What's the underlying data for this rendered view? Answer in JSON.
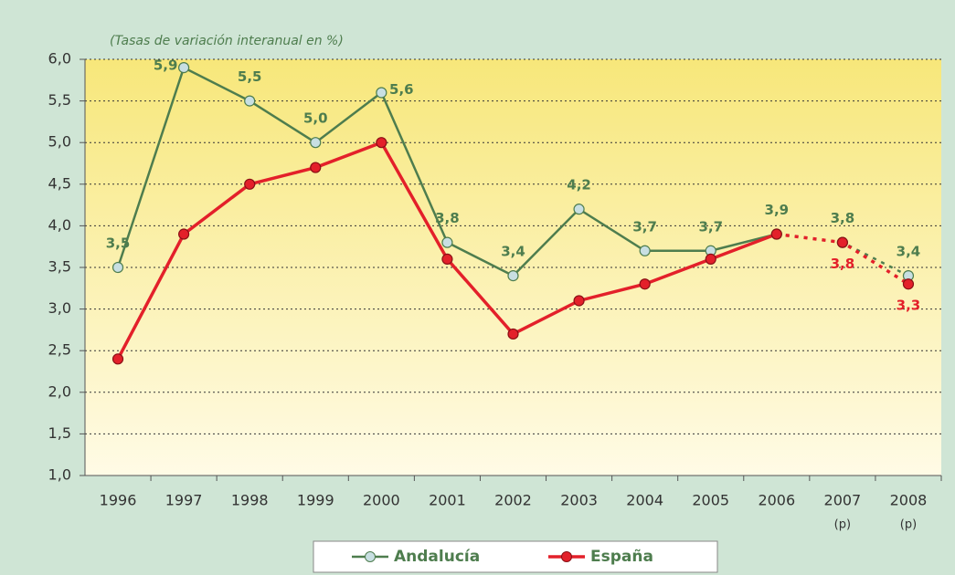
{
  "chart_data": {
    "type": "line",
    "subtitle": "(Tasas de variación interanual en %)",
    "categories": [
      "1996",
      "1997",
      "1998",
      "1999",
      "2000",
      "2001",
      "2002",
      "2003",
      "2004",
      "2005",
      "2006",
      "2007",
      "2008"
    ],
    "category_notes": [
      null,
      null,
      null,
      null,
      null,
      null,
      null,
      null,
      null,
      null,
      null,
      "(p)",
      "(p)"
    ],
    "projection_from": 10,
    "series": [
      {
        "name": "Andalucía",
        "color": "#4e7d4e",
        "marker_color": "#c8dfe2",
        "values": [
          3.5,
          5.9,
          5.5,
          5.0,
          5.6,
          3.8,
          3.4,
          4.2,
          3.7,
          3.7,
          3.9,
          3.8,
          3.4
        ],
        "value_labels": [
          "3,5",
          "5,9",
          "5,5",
          "5,0",
          "5,6",
          "3,8",
          "3,4",
          "4,2",
          "3,7",
          "3,7",
          "3,9",
          "3,8",
          "3,4"
        ]
      },
      {
        "name": "España",
        "color": "#e3202a",
        "marker_color": "#e3202a",
        "values": [
          2.4,
          3.9,
          4.5,
          4.7,
          5.0,
          3.6,
          2.7,
          3.1,
          3.3,
          3.6,
          3.9,
          3.8,
          3.3
        ],
        "value_labels": [
          null,
          null,
          null,
          null,
          null,
          null,
          null,
          null,
          null,
          null,
          null,
          "3,8",
          "3,3"
        ]
      }
    ],
    "ylim": [
      1,
      6
    ],
    "yticks": [
      {
        "value": 1,
        "label": "1,0"
      },
      {
        "value": 1.5,
        "label": "1,5"
      },
      {
        "value": 2,
        "label": "2,0"
      },
      {
        "value": 2.5,
        "label": "2,5"
      },
      {
        "value": 3,
        "label": "3,0"
      },
      {
        "value": 3.5,
        "label": "3,5"
      },
      {
        "value": 4,
        "label": "4,0"
      },
      {
        "value": 4.5,
        "label": "4,5"
      },
      {
        "value": 5,
        "label": "5,0"
      },
      {
        "value": 5.5,
        "label": "5,5"
      },
      {
        "value": 6,
        "label": "6,0"
      }
    ],
    "grid": true,
    "legend": "bottom"
  }
}
